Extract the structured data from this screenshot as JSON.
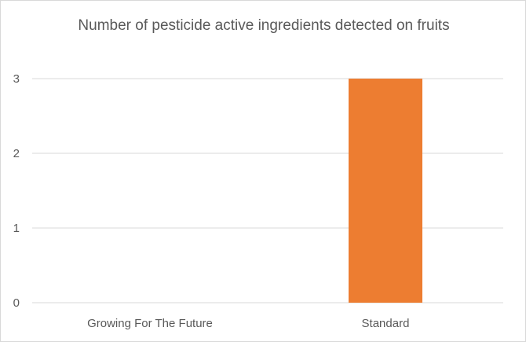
{
  "chart_data": {
    "type": "bar",
    "title": "Number of pesticide active ingredients detected on fruits",
    "categories": [
      "Growing For The Future",
      "Standard"
    ],
    "values": [
      0,
      3
    ],
    "xlabel": "",
    "ylabel": "",
    "ylim": [
      0,
      3
    ],
    "yticks": [
      0,
      1,
      2,
      3
    ],
    "grid": true,
    "legend": "none",
    "bar_color": "#ED7D31",
    "grid_color": "#d9d9d9",
    "text_color": "#595959"
  }
}
